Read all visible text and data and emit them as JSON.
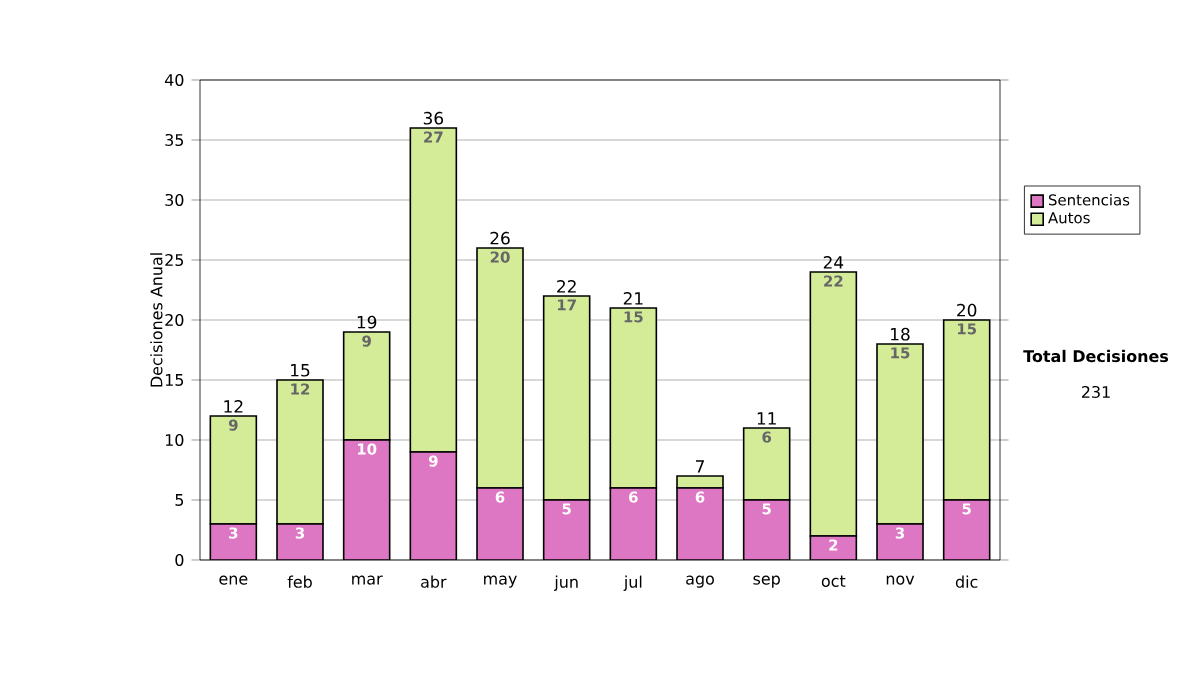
{
  "chart_data": {
    "type": "bar",
    "stacked": true,
    "ylabel": "Decisiones Anual",
    "categories": [
      "ene",
      "feb",
      "mar",
      "abr",
      "may",
      "jun",
      "jul",
      "ago",
      "sep",
      "oct",
      "nov",
      "dic"
    ],
    "series": [
      {
        "name": "Sentencias",
        "color": "#dd77c4",
        "values": [
          3,
          3,
          10,
          9,
          6,
          5,
          6,
          6,
          5,
          2,
          3,
          5
        ],
        "value_labels": [
          "3",
          "3",
          "10",
          "9",
          "6",
          "5",
          "6",
          "6",
          "5",
          "2",
          "3",
          "5"
        ]
      },
      {
        "name": "Autos",
        "color": "#d4ec98",
        "values": [
          9,
          12,
          9,
          27,
          20,
          17,
          15,
          1,
          6,
          22,
          15,
          15
        ],
        "value_labels": [
          "9",
          "12",
          "9",
          "27",
          "20",
          "17",
          "15",
          null,
          "6",
          "22",
          "15",
          "15"
        ]
      }
    ],
    "totals": [
      "12",
      "15",
      "19",
      "36",
      "26",
      "22",
      "21",
      "7",
      "11",
      "24",
      "18",
      "20"
    ],
    "ylim": [
      0,
      40
    ],
    "yticks": [
      0,
      5,
      10,
      15,
      20,
      25,
      30,
      35,
      40
    ],
    "grid": "y",
    "legend": "right",
    "annotations": [
      "Total Decisiones",
      "231"
    ]
  }
}
